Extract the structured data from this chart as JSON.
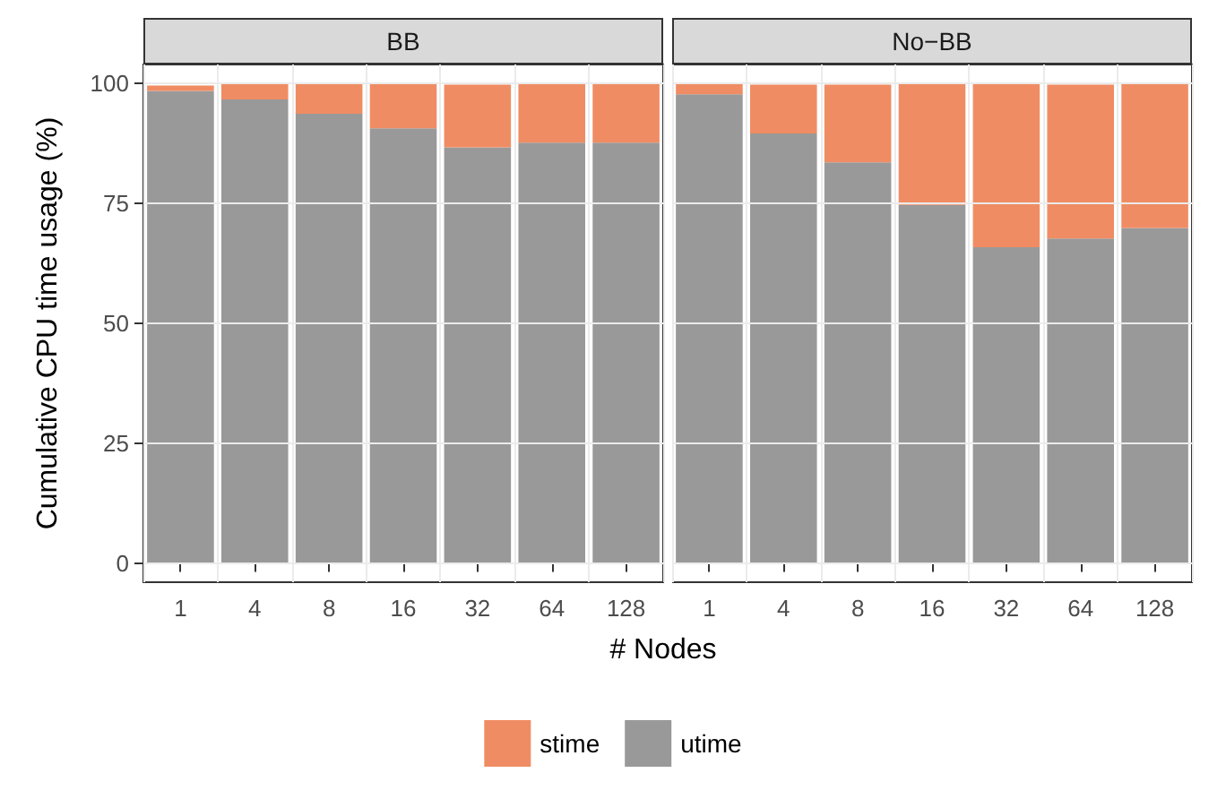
{
  "chart_data": [
    {
      "type": "bar",
      "title": "BB",
      "xlabel": "# Nodes",
      "ylabel": "Cumulative CPU time usage (%)",
      "categories": [
        "1",
        "4",
        "8",
        "16",
        "32",
        "64",
        "128"
      ],
      "stacked": true,
      "series": [
        {
          "name": "utime",
          "color": "#999999",
          "values": [
            98.5,
            96.7,
            93.7,
            90.7,
            86.7,
            87.7,
            87.7
          ]
        },
        {
          "name": "stime",
          "color": "#f08c63",
          "values": [
            1.1,
            3.3,
            6.3,
            9.3,
            13.1,
            12.3,
            12.3
          ]
        }
      ],
      "ylim": [
        -4,
        104
      ],
      "yticks": [
        0,
        25,
        50,
        75,
        100
      ],
      "grid": true,
      "legend": "bottom"
    },
    {
      "type": "bar",
      "title": "No−BB",
      "categories": [
        "1",
        "4",
        "8",
        "16",
        "32",
        "64",
        "128"
      ],
      "stacked": true,
      "series": [
        {
          "color": "#999999",
          "values": [
            97.8,
            89.6,
            83.6,
            74.7,
            65.9,
            67.7,
            69.9
          ]
        },
        {
          "color": "#f08c63",
          "values": [
            2.2,
            10.2,
            16.2,
            25.3,
            34.1,
            32.1,
            30.1
          ]
        }
      ],
      "ylim": [
        -4,
        104
      ],
      "yticks": [
        0,
        25,
        50,
        75,
        100
      ],
      "grid": true,
      "tick_labels": "x"
    }
  ]
}
